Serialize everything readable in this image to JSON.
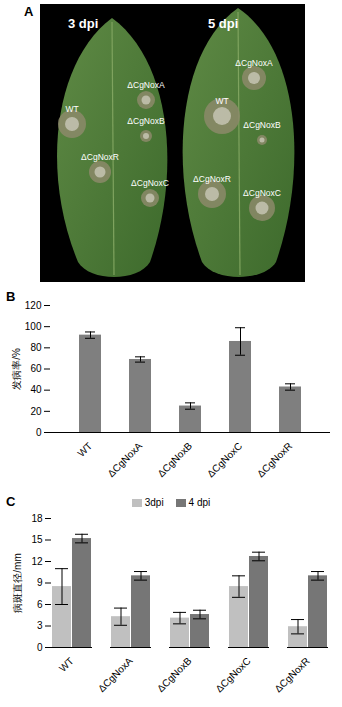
{
  "image": {
    "title": "A",
    "leaves": [
      {
        "label": "3 dpi",
        "spots": [
          "WT",
          "ΔCgNoxA",
          "ΔCgNoxB",
          "ΔCgNoxR",
          "ΔCgNoxC"
        ]
      },
      {
        "label": "5 dpi",
        "spots": [
          "WT",
          "ΔCgNoxA",
          "ΔCgNoxB",
          "ΔCgNoxR",
          "ΔCgNoxC"
        ]
      }
    ]
  },
  "chart_data": [
    {
      "type": "bar",
      "title": "B",
      "y_label": "发病率/%",
      "categories": [
        "WT",
        "ΔCgNoxA",
        "ΔCgNoxB",
        "ΔCgNoxC",
        "ΔCgNoxR"
      ],
      "values": [
        92,
        69,
        25,
        86,
        43
      ],
      "errors": [
        3,
        2.5,
        3,
        13,
        3
      ],
      "color": "#7f7f7f",
      "ylim": [
        0,
        120
      ],
      "yticks": [
        0,
        20,
        40,
        60,
        80,
        100,
        120
      ],
      "grid": false
    },
    {
      "type": "bar",
      "title": "C",
      "y_label": "病斑直径/mm",
      "categories": [
        "WT",
        "ΔCgNoxA",
        "ΔCgNoxB",
        "ΔCgNoxC",
        "ΔCgNoxR"
      ],
      "series": [
        {
          "name": "3dpi",
          "color": "#c0c0c0",
          "values": [
            8.5,
            4.3,
            4.1,
            8.5,
            2.9
          ],
          "errors": [
            2.5,
            1.2,
            0.8,
            1.5,
            1
          ]
        },
        {
          "name": "4 dpi",
          "color": "#767676",
          "values": [
            15.2,
            10,
            4.6,
            12.7,
            10
          ],
          "errors": [
            0.6,
            0.6,
            0.6,
            0.6,
            0.6
          ]
        }
      ],
      "ylim": [
        0,
        18
      ],
      "yticks": [
        0,
        3,
        6,
        9,
        12,
        15,
        18
      ],
      "grid": false,
      "legend": "top"
    }
  ]
}
